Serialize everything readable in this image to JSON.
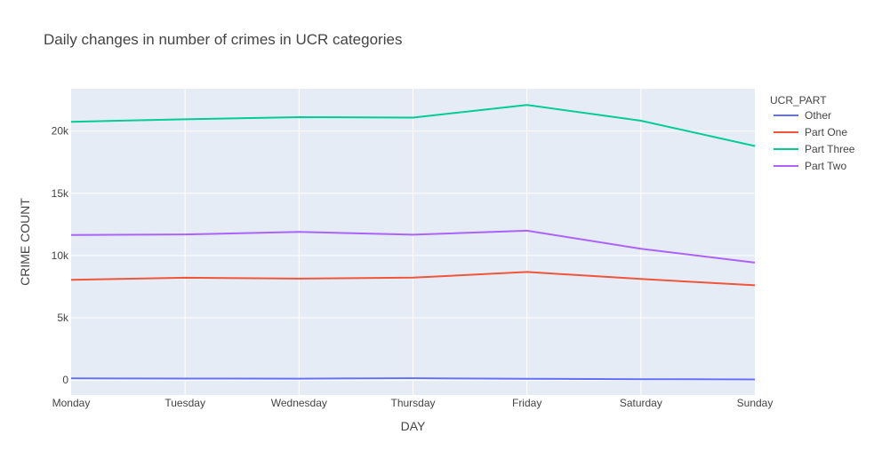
{
  "chart_data": {
    "type": "line",
    "title": "Daily changes in number of crimes in UCR categories",
    "xlabel": "DAY",
    "ylabel": "CRIME COUNT",
    "categories": [
      "Monday",
      "Tuesday",
      "Wednesday",
      "Thursday",
      "Friday",
      "Saturday",
      "Sunday"
    ],
    "ylim": [
      -1200,
      23400
    ],
    "yticks": [
      0,
      5000,
      10000,
      15000,
      20000
    ],
    "ytick_labels": [
      "0",
      "5k",
      "10k",
      "15k",
      "20k"
    ],
    "legend_title": "UCR_PART",
    "legend_position": "right",
    "grid": true,
    "series": [
      {
        "name": "Other",
        "color": "#636efa",
        "values": [
          130,
          120,
          110,
          150,
          100,
          70,
          50
        ]
      },
      {
        "name": "Part One",
        "color": "#ef553b",
        "values": [
          8050,
          8220,
          8150,
          8230,
          8680,
          8120,
          7610
        ]
      },
      {
        "name": "Part Three",
        "color": "#00cc96",
        "values": [
          20750,
          20950,
          21120,
          21080,
          22100,
          20830,
          18800
        ]
      },
      {
        "name": "Part Two",
        "color": "#ab63fa",
        "values": [
          11650,
          11700,
          11900,
          11680,
          12000,
          10550,
          9430
        ]
      }
    ]
  }
}
